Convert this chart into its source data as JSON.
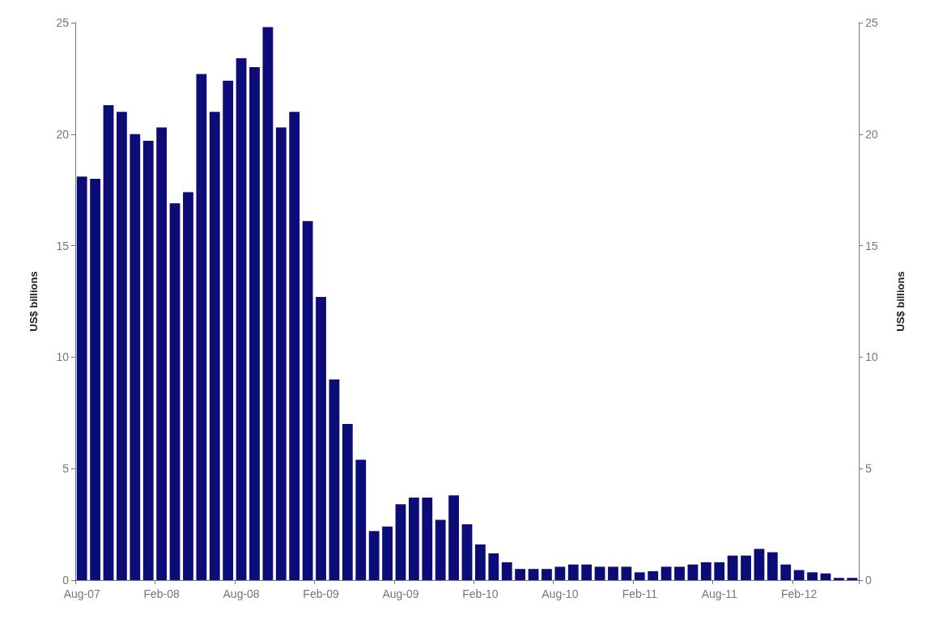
{
  "chart_data": {
    "type": "bar",
    "categories": [
      "Aug-07",
      null,
      null,
      null,
      null,
      null,
      "Feb-08",
      null,
      null,
      null,
      null,
      null,
      "Aug-08",
      null,
      null,
      null,
      null,
      null,
      "Feb-09",
      null,
      null,
      null,
      null,
      null,
      "Aug-09",
      null,
      null,
      null,
      null,
      null,
      "Feb-10",
      null,
      null,
      null,
      null,
      null,
      "Aug-10",
      null,
      null,
      null,
      null,
      null,
      "Feb-11",
      null,
      null,
      null,
      null,
      null,
      "Aug-11",
      null,
      null,
      null,
      null,
      null,
      "Feb-12",
      null,
      null,
      null,
      null
    ],
    "series": [
      {
        "color": "#0c0c78",
        "values": [
          18.1,
          18.0,
          21.3,
          21.0,
          20.0,
          19.7,
          20.3,
          16.9,
          17.4,
          22.7,
          21.0,
          22.4,
          23.4,
          23.0,
          24.8,
          20.3,
          21.0,
          16.1,
          12.7,
          9.0,
          7.0,
          5.4,
          2.2,
          2.4,
          3.4,
          3.7,
          3.7,
          2.7,
          3.8,
          2.5,
          1.6,
          1.2,
          0.8,
          0.5,
          0.5,
          0.5,
          0.6,
          0.7,
          0.7,
          0.6,
          0.6,
          0.6,
          0.35,
          0.4,
          0.6,
          0.6,
          0.7,
          0.8,
          0.8,
          1.1,
          1.1,
          1.4,
          1.25,
          0.7,
          0.45,
          0.35,
          0.3,
          0.1,
          0.1
        ]
      }
    ],
    "ylabel": "US$ billions",
    "y2label": "US$ billions",
    "ylim": [
      0,
      25
    ],
    "yticks": [
      0,
      5,
      10,
      15,
      20,
      25
    ],
    "y2lim": [
      0,
      25
    ],
    "y2ticks": [
      0,
      5,
      10,
      15,
      20,
      25
    ]
  }
}
